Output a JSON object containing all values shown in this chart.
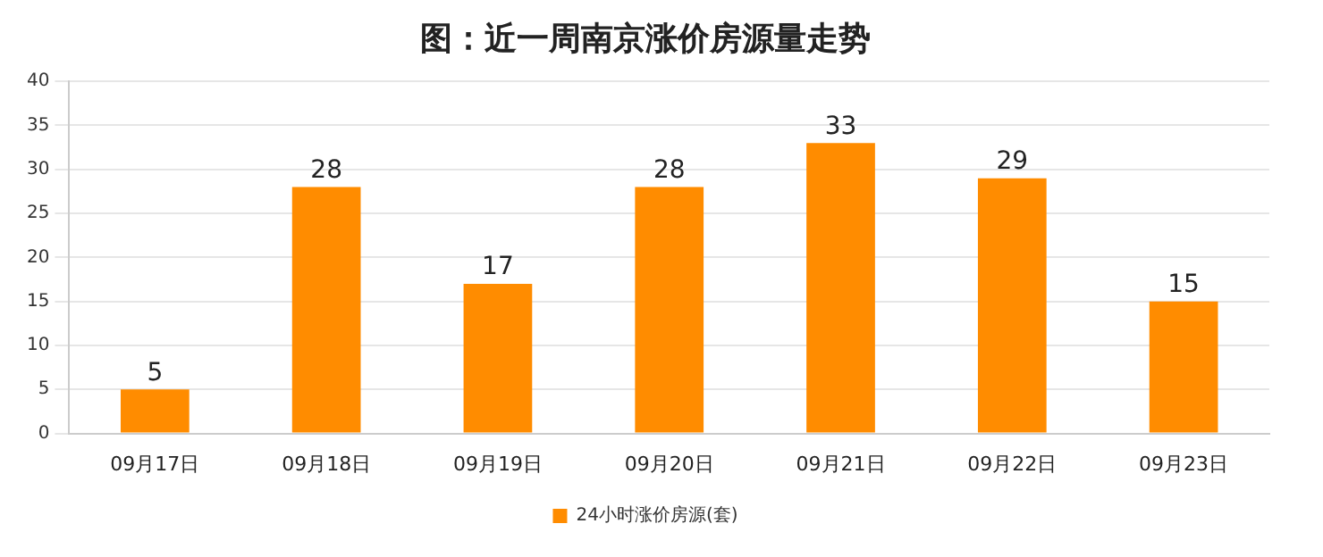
{
  "chart_data": {
    "type": "bar",
    "title": "图：近一周南京涨价房源量走势",
    "categories": [
      "09月17日",
      "09月18日",
      "09月19日",
      "09月20日",
      "09月21日",
      "09月22日",
      "09月23日"
    ],
    "series": [
      {
        "name": "24小时涨价房源(套)",
        "color": "#ff8c00",
        "values": [
          5,
          28,
          17,
          28,
          33,
          29,
          15
        ]
      }
    ],
    "ylim": [
      0,
      40
    ],
    "yticks": [
      0,
      5,
      10,
      15,
      20,
      25,
      30,
      35,
      40
    ],
    "grid": "y",
    "legend": "bottom",
    "data_labels": true
  }
}
